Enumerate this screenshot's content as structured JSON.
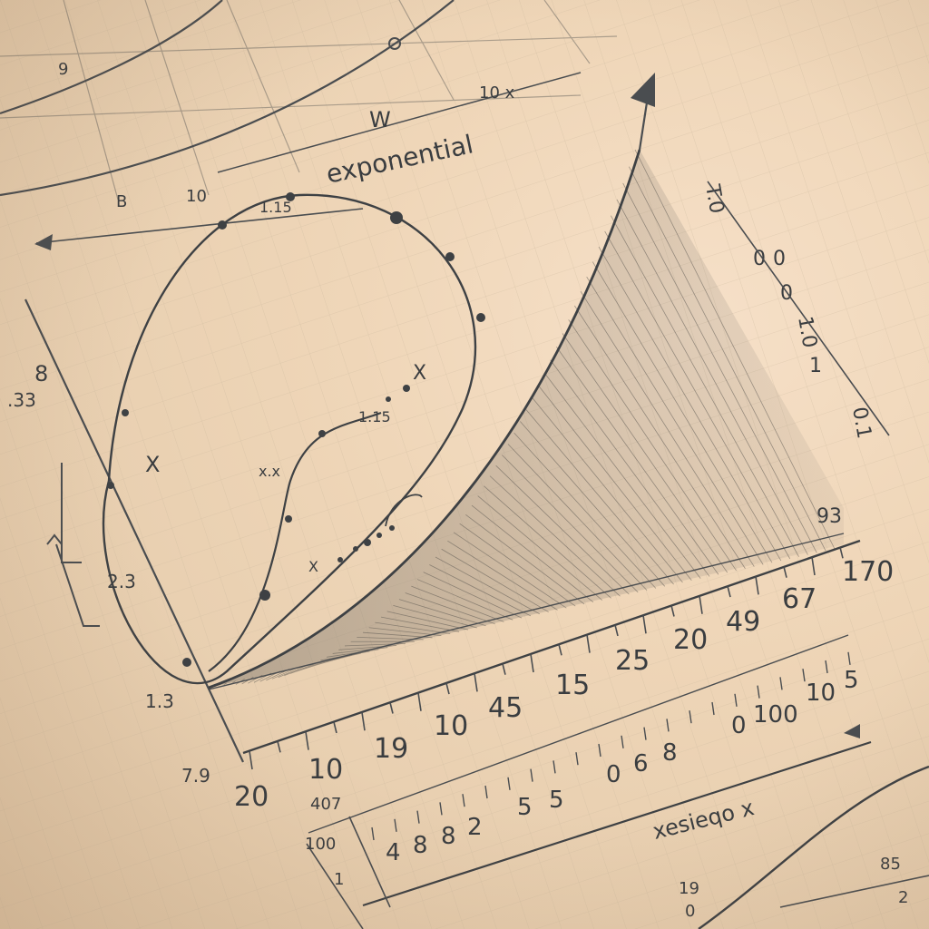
{
  "title": "exponential",
  "colors": {
    "paper": "#efd6b8",
    "ink": "#3a3d40",
    "grid": "#c9b79d"
  },
  "top_labels": [
    "9",
    "B",
    "10",
    "W",
    "10 x"
  ],
  "curve_labels": [
    "1.15",
    "X",
    "X",
    "1.15",
    "x.x",
    "X"
  ],
  "left_labels": [
    "8",
    ".33",
    "2.3",
    "1.3",
    "7.9"
  ],
  "right_labels": [
    "T.0",
    "0",
    "0",
    "0",
    "1.0",
    "1",
    "0.1",
    "93"
  ],
  "axis1_ticks": [
    "20",
    "10",
    "19",
    "10",
    "45",
    "15",
    "25",
    "20",
    "49",
    "67",
    "170"
  ],
  "axis2_ticks": [
    "4",
    "8",
    "8",
    "2",
    "5",
    "5",
    "0",
    "6",
    "8",
    "0",
    "100",
    "10",
    "5"
  ],
  "axis2_label": "xesieqo x",
  "bottom_labels": [
    "407",
    "100",
    "1",
    "19",
    "0",
    "85",
    "2"
  ]
}
